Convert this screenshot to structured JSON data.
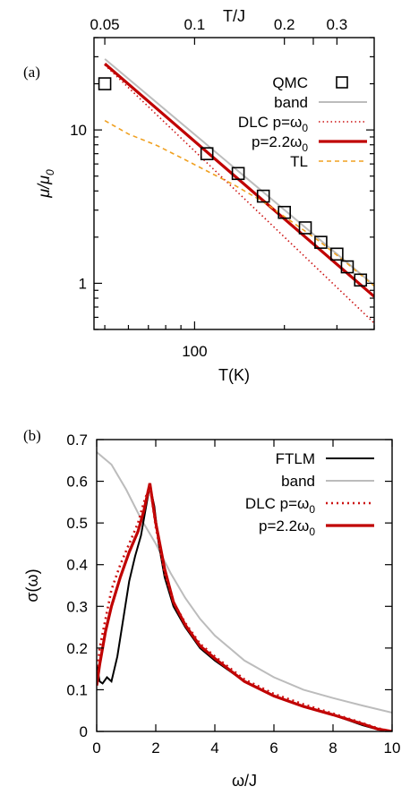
{
  "chart_data": [
    {
      "panel_label": "(a)",
      "type": "line",
      "x_scale": "log",
      "y_scale": "log",
      "xlabel": "T(K)",
      "xlabel_top": "T/J",
      "ylabel_main": "μ/μ",
      "ylabel_sub": "0",
      "xlim": [
        46,
        400
      ],
      "ylim": [
        0.5,
        40
      ],
      "ylim_note": "log axis",
      "x_ticks": [
        {
          "value": 100,
          "label": "100"
        }
      ],
      "x_ticks_top": [
        {
          "value": 0.05,
          "label": "0.05"
        },
        {
          "value": 0.1,
          "label": "0.1"
        },
        {
          "value": 0.2,
          "label": "0.2"
        },
        {
          "value": 0.25,
          "label": ""
        },
        {
          "value": 0.3,
          "label": "0.3"
        }
      ],
      "top_axis_K_per_J": 1000,
      "y_ticks": [
        {
          "value": 1,
          "label": "1"
        },
        {
          "value": 10,
          "label": "10"
        }
      ],
      "legend_position": "top-right",
      "series": [
        {
          "name": "QMC",
          "style": "markers",
          "marker": "open-square",
          "color": "#000000",
          "x": [
            50,
            110,
            140,
            170,
            200,
            235,
            265,
            300,
            325,
            360
          ],
          "y": [
            20,
            7,
            5.2,
            3.7,
            2.9,
            2.3,
            1.85,
            1.55,
            1.28,
            1.05
          ]
        },
        {
          "name": "band",
          "style": "solid",
          "color": "#bcbcbc",
          "x": [
            50,
            400
          ],
          "y": [
            29,
            0.97
          ]
        },
        {
          "name": "DLC p=ω",
          "name_sub": "0",
          "style": "dotted",
          "color": "#cc1111",
          "x": [
            50,
            400
          ],
          "y": [
            26.5,
            0.55
          ]
        },
        {
          "name": "p=2.2ω",
          "name_sub": "0",
          "style": "thick",
          "color": "#c00000",
          "x": [
            50,
            400
          ],
          "y": [
            27,
            0.82
          ]
        },
        {
          "name": "TL",
          "style": "dashed",
          "color": "#f0a020",
          "x": [
            50,
            60,
            75,
            90,
            110,
            135,
            170,
            210,
            260,
            320,
            400
          ],
          "y": [
            11.5,
            9.4,
            7.9,
            6.6,
            5.4,
            4.4,
            3.4,
            2.55,
            1.9,
            1.38,
            0.96
          ]
        }
      ]
    },
    {
      "panel_label": "(b)",
      "type": "line",
      "x_scale": "linear",
      "y_scale": "linear",
      "xlabel": "ω/J",
      "ylabel": "σ(ω)",
      "xlim": [
        0,
        10
      ],
      "ylim": [
        0,
        0.7
      ],
      "x_ticks": [
        {
          "value": 0,
          "label": "0"
        },
        {
          "value": 2,
          "label": "2"
        },
        {
          "value": 4,
          "label": "4"
        },
        {
          "value": 6,
          "label": "6"
        },
        {
          "value": 8,
          "label": "8"
        },
        {
          "value": 10,
          "label": "10"
        }
      ],
      "y_ticks": [
        {
          "value": 0,
          "label": "0"
        },
        {
          "value": 0.1,
          "label": "0.1"
        },
        {
          "value": 0.2,
          "label": "0.2"
        },
        {
          "value": 0.3,
          "label": "0.3"
        },
        {
          "value": 0.4,
          "label": "0.4"
        },
        {
          "value": 0.5,
          "label": "0.5"
        },
        {
          "value": 0.6,
          "label": "0.6"
        },
        {
          "value": 0.7,
          "label": "0.7"
        }
      ],
      "legend_position": "top-right",
      "series": [
        {
          "name": "FTLM",
          "style": "solid",
          "color": "#000000",
          "x": [
            0,
            0.1,
            0.2,
            0.35,
            0.5,
            0.7,
            0.9,
            1.1,
            1.3,
            1.5,
            1.65,
            1.8,
            1.95,
            2.1,
            2.3,
            2.6,
            3.0,
            3.5,
            4.0,
            5.0,
            6.0,
            7.0,
            8.0,
            9.0,
            9.5,
            10.0
          ],
          "y": [
            0.16,
            0.12,
            0.115,
            0.13,
            0.12,
            0.18,
            0.27,
            0.36,
            0.42,
            0.47,
            0.53,
            0.59,
            0.54,
            0.45,
            0.37,
            0.3,
            0.25,
            0.2,
            0.17,
            0.12,
            0.085,
            0.06,
            0.04,
            0.015,
            0.005,
            0.0
          ]
        },
        {
          "name": "band",
          "style": "solid",
          "color": "#bcbcbc",
          "x": [
            0,
            0.5,
            1.0,
            1.5,
            2.0,
            2.5,
            3.0,
            3.5,
            4.0,
            5.0,
            6.0,
            7.0,
            8.0,
            9.0,
            10.0
          ],
          "y": [
            0.67,
            0.64,
            0.58,
            0.51,
            0.45,
            0.38,
            0.32,
            0.27,
            0.23,
            0.17,
            0.13,
            0.1,
            0.08,
            0.062,
            0.045
          ]
        },
        {
          "name": "DLC p=ω",
          "name_sub": "0",
          "style": "dotted",
          "color": "#cc1111",
          "x": [
            0,
            0.1,
            0.3,
            0.5,
            0.8,
            1.1,
            1.4,
            1.6,
            1.8,
            2.0,
            2.3,
            2.6,
            3.0,
            3.5,
            4.0,
            5.0,
            6.0,
            7.0,
            8.0,
            9.0,
            9.5,
            10.0
          ],
          "y": [
            0.13,
            0.2,
            0.27,
            0.34,
            0.4,
            0.45,
            0.5,
            0.55,
            0.59,
            0.49,
            0.38,
            0.31,
            0.26,
            0.21,
            0.18,
            0.125,
            0.09,
            0.065,
            0.043,
            0.02,
            0.008,
            0.0
          ]
        },
        {
          "name": "p=2.2ω",
          "name_sub": "0",
          "style": "thick",
          "color": "#c00000",
          "x": [
            0,
            0.1,
            0.3,
            0.5,
            0.8,
            1.1,
            1.4,
            1.6,
            1.8,
            2.0,
            2.3,
            2.6,
            3.0,
            3.5,
            4.0,
            5.0,
            6.0,
            7.0,
            8.0,
            9.0,
            9.5,
            10.0
          ],
          "y": [
            0.11,
            0.16,
            0.24,
            0.3,
            0.37,
            0.43,
            0.48,
            0.53,
            0.595,
            0.5,
            0.39,
            0.31,
            0.255,
            0.205,
            0.175,
            0.12,
            0.085,
            0.06,
            0.04,
            0.018,
            0.006,
            0.0
          ]
        }
      ]
    }
  ]
}
